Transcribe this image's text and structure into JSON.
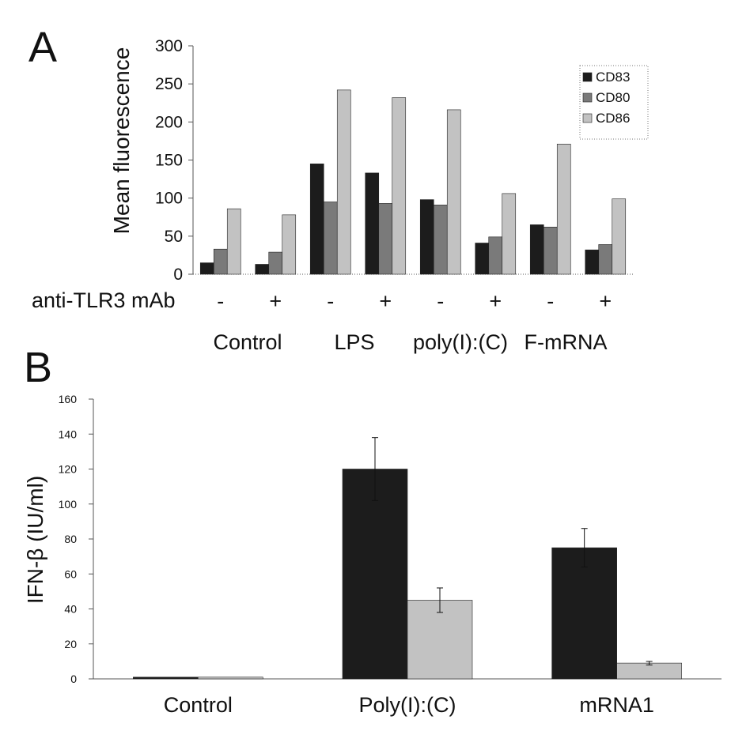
{
  "panels": {
    "a_letter": "A",
    "b_letter": "B"
  },
  "colors": {
    "dark": "#1c1c1c",
    "mid": "#7a7a7a",
    "light": "#c2c2c2",
    "axis": "#555555"
  },
  "chart_data": [
    {
      "type": "bar",
      "panel": "A",
      "ylabel": "Mean fluorescence",
      "xlabel": "",
      "ylim": [
        0,
        300
      ],
      "yticks": [
        0,
        50,
        100,
        150,
        200,
        250,
        300
      ],
      "row_label": "anti-TLR3 mAb",
      "treatment_signs": [
        "-",
        "+",
        "-",
        "+",
        "-",
        "+",
        "-",
        "+"
      ],
      "groups": [
        "Control",
        "LPS",
        "poly(I):(C)",
        "F-mRNA"
      ],
      "legend_position": "top-right",
      "grid": false,
      "series": [
        {
          "name": "CD83",
          "color": "#1c1c1c",
          "values": [
            15,
            13,
            145,
            133,
            98,
            41,
            65,
            32
          ]
        },
        {
          "name": "CD80",
          "color": "#7a7a7a",
          "values": [
            33,
            29,
            95,
            93,
            91,
            49,
            62,
            39
          ]
        },
        {
          "name": "CD86",
          "color": "#c2c2c2",
          "values": [
            86,
            78,
            242,
            232,
            216,
            106,
            171,
            99
          ]
        }
      ]
    },
    {
      "type": "bar",
      "panel": "B",
      "ylabel": "IFN-β (IU/ml)",
      "xlabel": "",
      "ylim": [
        0,
        160
      ],
      "yticks": [
        0,
        20,
        40,
        60,
        80,
        100,
        120,
        140,
        160
      ],
      "categories": [
        "Control",
        "Poly(I):(C)",
        "mRNA1"
      ],
      "grid": false,
      "series": [
        {
          "color": "#1c1c1c",
          "values": [
            1,
            120,
            75
          ],
          "errors": [
            0,
            18,
            11
          ]
        },
        {
          "color": "#c2c2c2",
          "values": [
            1,
            45,
            9
          ],
          "errors": [
            0,
            7,
            1
          ]
        }
      ]
    }
  ]
}
